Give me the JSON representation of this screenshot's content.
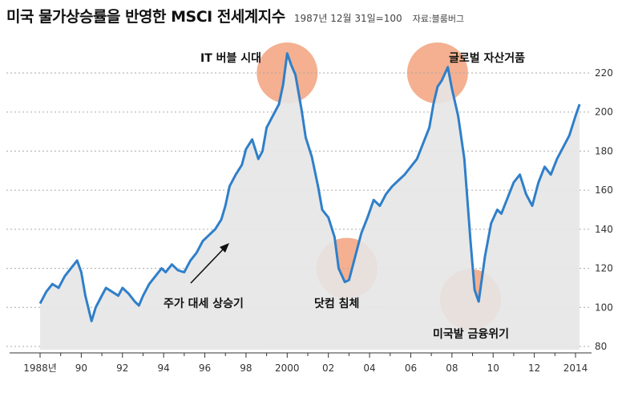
{
  "header": {
    "title": "미국 물가상승률을 반영한 MSCI 전세계지수",
    "subtitle": "1987년 12월 31일=100",
    "source": "자료:블룸버그"
  },
  "colors": {
    "line": "#2f7fc9",
    "area": "#e6e6e6",
    "highlight": "#f2a27c",
    "grid": "#aaaaaa"
  },
  "chart_data": {
    "type": "area",
    "title": "미국 물가상승률을 반영한 MSCI 전세계지수",
    "subtitle": "1987년 12월 31일=100",
    "ylim": [
      80,
      220
    ],
    "xlim": [
      1988,
      2014
    ],
    "y_ticks": [
      "80",
      "100",
      "120",
      "140",
      "160",
      "180",
      "200",
      "220"
    ],
    "x_ticks": [
      "1988년",
      "90",
      "92",
      "94",
      "96",
      "98",
      "2000",
      "02",
      "04",
      "06",
      "08",
      "10",
      "12",
      "2014"
    ],
    "x": [
      1988.0,
      1988.3,
      1988.6,
      1988.9,
      1989.2,
      1989.5,
      1989.8,
      1990.0,
      1990.2,
      1990.5,
      1990.7,
      1990.9,
      1991.2,
      1991.5,
      1991.8,
      1992.0,
      1992.3,
      1992.6,
      1992.8,
      1993.0,
      1993.3,
      1993.6,
      1993.9,
      1994.1,
      1994.4,
      1994.7,
      1995.0,
      1995.3,
      1995.6,
      1995.9,
      1996.2,
      1996.5,
      1996.8,
      1997.0,
      1997.2,
      1997.5,
      1997.8,
      1998.0,
      1998.3,
      1998.6,
      1998.8,
      1999.0,
      1999.3,
      1999.6,
      1999.8,
      2000.0,
      2000.2,
      2000.4,
      2000.7,
      2000.9,
      2001.2,
      2001.5,
      2001.7,
      2002.0,
      2002.3,
      2002.5,
      2002.8,
      2003.0,
      2003.3,
      2003.6,
      2003.9,
      2004.2,
      2004.5,
      2004.8,
      2005.1,
      2005.4,
      2005.7,
      2006.0,
      2006.3,
      2006.6,
      2006.9,
      2007.1,
      2007.3,
      2007.5,
      2007.8,
      2008.0,
      2008.3,
      2008.6,
      2008.9,
      2009.1,
      2009.3,
      2009.6,
      2009.9,
      2010.2,
      2010.4,
      2010.7,
      2011.0,
      2011.3,
      2011.6,
      2011.9,
      2012.2,
      2012.5,
      2012.8,
      2013.1,
      2013.4,
      2013.7,
      2014.0,
      2014.2
    ],
    "y": [
      102,
      108,
      112,
      110,
      116,
      120,
      124,
      118,
      106,
      93,
      100,
      104,
      110,
      108,
      106,
      110,
      107,
      103,
      101,
      106,
      112,
      116,
      120,
      118,
      122,
      119,
      118,
      124,
      128,
      134,
      137,
      140,
      145,
      152,
      162,
      168,
      173,
      181,
      186,
      176,
      180,
      192,
      198,
      204,
      214,
      230,
      224,
      219,
      201,
      187,
      177,
      162,
      150,
      146,
      136,
      120,
      113,
      114,
      126,
      138,
      146,
      155,
      152,
      158,
      162,
      165,
      168,
      172,
      176,
      184,
      192,
      204,
      213,
      216,
      223,
      212,
      198,
      176,
      134,
      109,
      103,
      126,
      143,
      150,
      148,
      156,
      164,
      168,
      158,
      152,
      164,
      172,
      168,
      176,
      182,
      188,
      198,
      204
    ]
  },
  "annotations": {
    "it_bubble": "IT 버블 시대",
    "global_asset_bubble": "글로벌 자산거품",
    "dotcom_sink": "닷컴 침체",
    "us_financial_crisis": "미국발 금융위기",
    "uptrend": "주가 대세 상승기"
  }
}
